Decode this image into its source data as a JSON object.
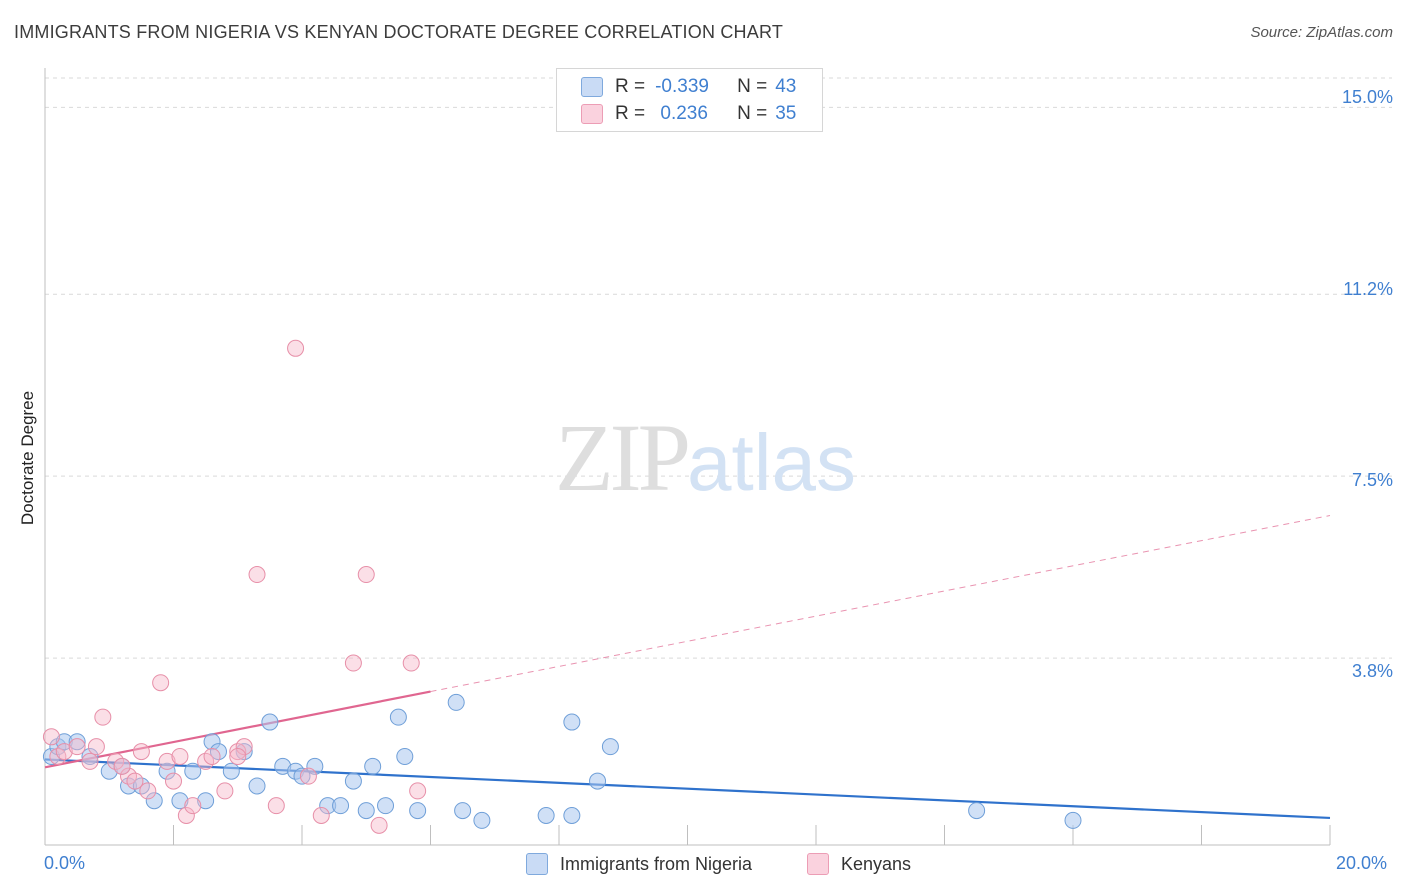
{
  "header": {
    "title": "IMMIGRANTS FROM NIGERIA VS KENYAN DOCTORATE DEGREE CORRELATION CHART",
    "source": "Source: ZipAtlas.com"
  },
  "watermark": {
    "part1": "ZIP",
    "part2": "atlas"
  },
  "legend": {
    "rows": [
      {
        "r_label": "R =",
        "r_value": "-0.339",
        "n_label": "N =",
        "n_value": "43",
        "color": "#a9c7ef"
      },
      {
        "r_label": "R =",
        "r_value": " 0.236",
        "n_label": "N =",
        "n_value": "35",
        "color": "#f6b8c9"
      }
    ]
  },
  "colors": {
    "blue_fill": "#a9c7ef",
    "blue_stroke": "#6f9fd8",
    "blue_line": "#2f72cc",
    "pink_fill": "#f6b8c9",
    "pink_stroke": "#e78fa8",
    "pink_line": "#e06690",
    "tick_text": "#3f7fd0",
    "grid": "#d9d9d9"
  },
  "chart_data": {
    "type": "scatter",
    "title": "IMMIGRANTS FROM NIGERIA VS KENYAN DOCTORATE DEGREE CORRELATION CHART",
    "xlabel": "",
    "ylabel": "Doctorate Degree",
    "xlim": [
      0,
      20
    ],
    "ylim": [
      0,
      15.8
    ],
    "x_tick_labels": [
      "0.0%",
      "20.0%"
    ],
    "y_ticks": [
      3.8,
      7.5,
      11.2,
      15.0
    ],
    "y_tick_labels": [
      "3.8%",
      "7.5%",
      "11.2%",
      "15.0%"
    ],
    "grid": "horizontal dashed",
    "series": [
      {
        "name": "Immigrants from Nigeria",
        "color": "#a9c7ef",
        "points": [
          [
            0.1,
            1.8
          ],
          [
            0.2,
            2.0
          ],
          [
            0.3,
            2.1
          ],
          [
            0.5,
            2.1
          ],
          [
            0.7,
            1.8
          ],
          [
            1.0,
            1.5
          ],
          [
            1.2,
            1.6
          ],
          [
            1.3,
            1.2
          ],
          [
            1.5,
            1.2
          ],
          [
            1.7,
            0.9
          ],
          [
            1.9,
            1.5
          ],
          [
            2.1,
            0.9
          ],
          [
            2.3,
            1.5
          ],
          [
            2.5,
            0.9
          ],
          [
            2.6,
            2.1
          ],
          [
            2.7,
            1.9
          ],
          [
            2.9,
            1.5
          ],
          [
            3.1,
            1.9
          ],
          [
            3.3,
            1.2
          ],
          [
            3.5,
            2.5
          ],
          [
            3.7,
            1.6
          ],
          [
            3.9,
            1.5
          ],
          [
            4.0,
            1.4
          ],
          [
            4.2,
            1.6
          ],
          [
            4.4,
            0.8
          ],
          [
            4.6,
            0.8
          ],
          [
            4.8,
            1.3
          ],
          [
            5.0,
            0.7
          ],
          [
            5.1,
            1.6
          ],
          [
            5.3,
            0.8
          ],
          [
            5.6,
            1.8
          ],
          [
            5.5,
            2.6
          ],
          [
            5.8,
            0.7
          ],
          [
            6.4,
            2.9
          ],
          [
            6.5,
            0.7
          ],
          [
            6.8,
            0.5
          ],
          [
            7.8,
            0.6
          ],
          [
            8.2,
            2.5
          ],
          [
            8.2,
            0.6
          ],
          [
            8.6,
            1.3
          ],
          [
            8.8,
            2.0
          ],
          [
            14.5,
            0.7
          ],
          [
            16.0,
            0.5
          ]
        ],
        "trend": {
          "x": [
            0,
            20
          ],
          "y": [
            1.74,
            0.55
          ],
          "style": "solid"
        }
      },
      {
        "name": "Kenyans",
        "color": "#f6b8c9",
        "points": [
          [
            0.1,
            2.2
          ],
          [
            0.2,
            1.8
          ],
          [
            0.3,
            1.9
          ],
          [
            0.5,
            2.0
          ],
          [
            0.7,
            1.7
          ],
          [
            0.8,
            2.0
          ],
          [
            0.9,
            2.6
          ],
          [
            1.1,
            1.7
          ],
          [
            1.3,
            1.4
          ],
          [
            1.4,
            1.3
          ],
          [
            1.5,
            1.9
          ],
          [
            1.6,
            1.1
          ],
          [
            1.8,
            3.3
          ],
          [
            1.9,
            1.7
          ],
          [
            2.0,
            1.3
          ],
          [
            2.1,
            1.8
          ],
          [
            2.2,
            0.6
          ],
          [
            2.3,
            0.8
          ],
          [
            2.5,
            1.7
          ],
          [
            2.6,
            1.8
          ],
          [
            2.8,
            1.1
          ],
          [
            3.0,
            1.9
          ],
          [
            3.1,
            2.0
          ],
          [
            3.3,
            5.5
          ],
          [
            3.6,
            0.8
          ],
          [
            3.9,
            10.1
          ],
          [
            4.1,
            1.4
          ],
          [
            4.3,
            0.6
          ],
          [
            4.8,
            3.7
          ],
          [
            5.0,
            5.5
          ],
          [
            5.2,
            0.4
          ],
          [
            5.7,
            3.7
          ],
          [
            5.8,
            1.1
          ],
          [
            3.0,
            1.8
          ],
          [
            1.2,
            1.6
          ]
        ],
        "trend": {
          "x": [
            0,
            6.0
          ],
          "y": [
            1.58,
            3.12
          ],
          "style": "solid",
          "extension": {
            "x": [
              6.0,
              20
            ],
            "y": [
              3.12,
              6.7
            ],
            "style": "dashed"
          }
        }
      }
    ]
  }
}
